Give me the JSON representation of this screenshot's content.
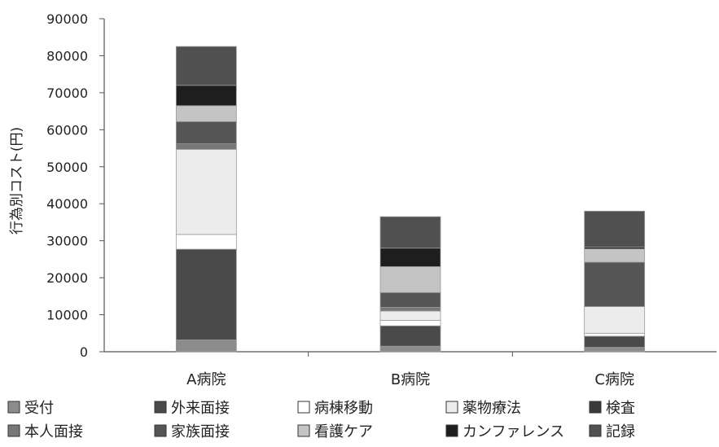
{
  "chart_data": {
    "type": "bar",
    "stacked": true,
    "title": "",
    "xlabel": "",
    "ylabel": "行為別コスト(円)",
    "ylim": [
      0,
      90000
    ],
    "yticks": [
      0,
      10000,
      20000,
      30000,
      40000,
      50000,
      60000,
      70000,
      80000,
      90000
    ],
    "grid": false,
    "legend_position": "bottom",
    "categories": [
      "A病院",
      "B病院",
      "C病院"
    ],
    "series": [
      {
        "name": "受付",
        "color": "#8c8c8c",
        "values": [
          3200,
          1500,
          1200
        ]
      },
      {
        "name": "外来面接",
        "color": "#4a4a4a",
        "values": [
          24500,
          5500,
          3000
        ]
      },
      {
        "name": "病棟移動",
        "color": "#ffffff",
        "values": [
          4000,
          1500,
          800
        ]
      },
      {
        "name": "薬物療法",
        "color": "#ececec",
        "values": [
          23000,
          2500,
          7200
        ]
      },
      {
        "name": "検査",
        "color": "#3a3a3a",
        "values": [
          0,
          0,
          0
        ]
      },
      {
        "name": "本人面接",
        "color": "#787878",
        "values": [
          1500,
          1000,
          0
        ]
      },
      {
        "name": "家族面接",
        "color": "#555555",
        "values": [
          6000,
          4000,
          12000
        ]
      },
      {
        "name": "看護ケア",
        "color": "#c4c4c4",
        "values": [
          4300,
          7000,
          3600
        ]
      },
      {
        "name": "カンファレンス",
        "color": "#1e1e1e",
        "values": [
          5500,
          5000,
          500
        ]
      },
      {
        "name": "記録",
        "color": "#505050",
        "values": [
          10500,
          8500,
          9700
        ]
      }
    ]
  }
}
